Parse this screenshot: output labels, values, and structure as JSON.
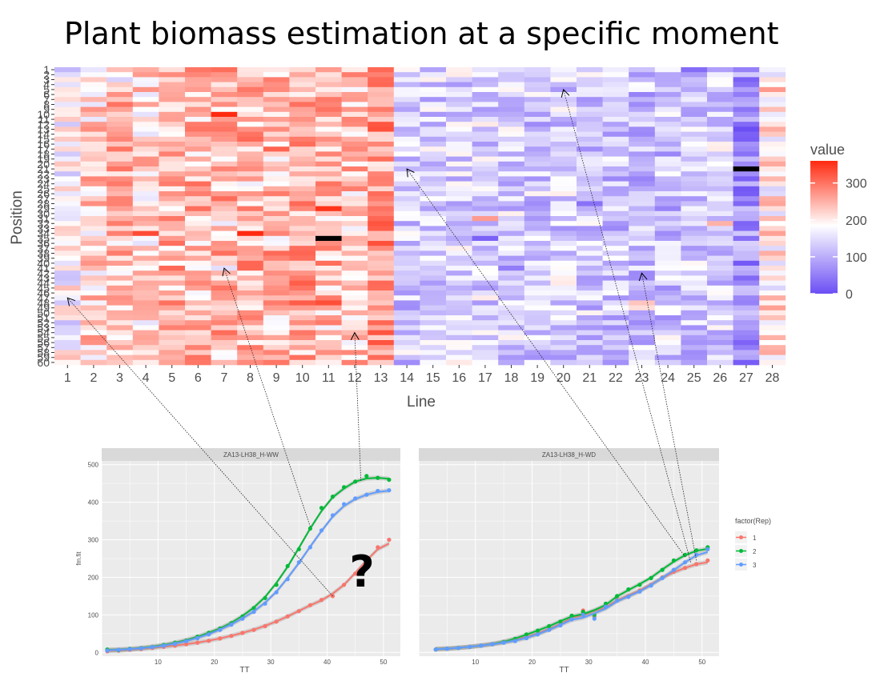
{
  "page": {
    "title": "Plant biomass estimation at a specific moment",
    "question_mark": "?"
  },
  "heatmap": {
    "xlabel": "Line",
    "ylabel": "Position",
    "x_tick_labels": [
      "1",
      "2",
      "3",
      "4",
      "5",
      "6",
      "7",
      "8",
      "9",
      "10",
      "11",
      "12",
      "13",
      "14",
      "15",
      "16",
      "17",
      "18",
      "19",
      "20",
      "21",
      "22",
      "23",
      "24",
      "25",
      "26",
      "27",
      "28"
    ],
    "y_tick_labels": [
      "1",
      "2",
      "3",
      "4",
      "5",
      "6",
      "7",
      "8",
      "9",
      "10",
      "11",
      "12",
      "13",
      "14",
      "15",
      "16",
      "17",
      "18",
      "19",
      "20",
      "21",
      "22",
      "23",
      "24",
      "25",
      "26",
      "27",
      "28",
      "29",
      "30",
      "31",
      "32",
      "33",
      "34",
      "35",
      "36",
      "37",
      "38",
      "39",
      "40",
      "41",
      "42",
      "43",
      "44",
      "45",
      "46",
      "47",
      "48",
      "49",
      "50",
      "51",
      "52",
      "53",
      "54",
      "55",
      "56",
      "57",
      "58",
      "59",
      "60"
    ],
    "legend": {
      "title": "value",
      "ticks": [
        "300",
        "200",
        "100",
        "0"
      ],
      "colors": {
        "low": "#6c4ef5",
        "mid": "#ffffff",
        "high": "#ff2a10"
      },
      "range": [
        0,
        360
      ],
      "midpoint": 185
    },
    "missing_color": "#000000",
    "missing_cells": [
      [
        11,
        35
      ],
      [
        27,
        21
      ]
    ]
  },
  "growth_panels": [
    {
      "strip_title": "ZA13-LH38_H-WW",
      "xlabel": "TT",
      "ylabel": "fm.fit",
      "x_ticks": [
        "10",
        "20",
        "30",
        "40",
        "50"
      ],
      "y_ticks": [
        "0",
        "100",
        "200",
        "300",
        "400",
        "500"
      ]
    },
    {
      "strip_title": "ZA13-LH38_H-WD",
      "xlabel": "TT",
      "x_ticks": [
        "10",
        "20",
        "30",
        "40",
        "50"
      ]
    }
  ],
  "growth_legend": {
    "title": "factor(Rep)",
    "items": [
      {
        "label": "1",
        "color": "#f8766d"
      },
      {
        "label": "2",
        "color": "#00ba38"
      },
      {
        "label": "3",
        "color": "#619cff"
      }
    ]
  },
  "chart_data": [
    {
      "type": "heatmap",
      "title": "",
      "xlabel": "Line",
      "ylabel": "Position",
      "x": [
        1,
        2,
        3,
        4,
        5,
        6,
        7,
        8,
        9,
        10,
        11,
        12,
        13,
        14,
        15,
        16,
        17,
        18,
        19,
        20,
        21,
        22,
        23,
        24,
        25,
        26,
        27,
        28
      ],
      "y_range": [
        1,
        60
      ],
      "column_mean_values": [
        175,
        220,
        240,
        215,
        245,
        240,
        245,
        250,
        235,
        255,
        240,
        230,
        265,
        130,
        135,
        140,
        140,
        135,
        130,
        135,
        130,
        125,
        120,
        125,
        130,
        140,
        75,
        200
      ],
      "value_range": [
        0,
        360
      ],
      "missing": [
        {
          "line": 11,
          "position": 35
        },
        {
          "line": 27,
          "position": 21
        }
      ]
    },
    {
      "type": "scatter",
      "title": "ZA13-LH38_H-WW",
      "xlabel": "TT",
      "ylabel": "fm.fit",
      "xlim": [
        0,
        53
      ],
      "ylim": [
        -10,
        510
      ],
      "series": [
        {
          "name": "1",
          "x": [
            1,
            3,
            5,
            7,
            9,
            11,
            13,
            15,
            17,
            19,
            21,
            23,
            25,
            27,
            29,
            31,
            33,
            35,
            37,
            39,
            41,
            43,
            45,
            47,
            49,
            51
          ],
          "y": [
            3,
            5,
            7,
            9,
            12,
            15,
            18,
            22,
            26,
            31,
            37,
            44,
            52,
            60,
            70,
            82,
            96,
            110,
            126,
            140,
            150,
            180,
            210,
            245,
            280,
            300
          ]
        },
        {
          "name": "2",
          "x": [
            1,
            3,
            5,
            7,
            9,
            11,
            13,
            15,
            17,
            19,
            21,
            23,
            25,
            27,
            29,
            31,
            33,
            35,
            37,
            39,
            41,
            43,
            45,
            47,
            49,
            51
          ],
          "y": [
            8,
            6,
            10,
            12,
            15,
            20,
            26,
            32,
            42,
            52,
            64,
            78,
            96,
            118,
            145,
            180,
            230,
            275,
            330,
            385,
            415,
            440,
            455,
            470,
            465,
            460
          ]
        },
        {
          "name": "3",
          "x": [
            1,
            3,
            5,
            7,
            9,
            11,
            13,
            15,
            17,
            19,
            21,
            23,
            25,
            27,
            29,
            31,
            33,
            35,
            37,
            39,
            41,
            43,
            45,
            47,
            49,
            51
          ],
          "y": [
            5,
            7,
            9,
            11,
            14,
            18,
            23,
            30,
            38,
            48,
            60,
            74,
            90,
            108,
            130,
            160,
            195,
            240,
            280,
            325,
            365,
            395,
            410,
            420,
            430,
            432
          ]
        }
      ]
    },
    {
      "type": "scatter",
      "title": "ZA13-LH38_H-WD",
      "xlabel": "TT",
      "xlim": [
        0,
        53
      ],
      "ylim": [
        -10,
        510
      ],
      "series": [
        {
          "name": "1",
          "x": [
            3,
            5,
            7,
            9,
            11,
            13,
            15,
            17,
            19,
            21,
            23,
            25,
            27,
            29,
            31,
            33,
            35,
            37,
            39,
            41,
            43,
            45,
            47,
            49,
            51
          ],
          "y": [
            8,
            10,
            12,
            15,
            18,
            22,
            28,
            34,
            40,
            50,
            62,
            75,
            90,
            112,
            95,
            125,
            140,
            150,
            165,
            180,
            200,
            215,
            225,
            235,
            245
          ]
        },
        {
          "name": "2",
          "x": [
            3,
            5,
            7,
            9,
            11,
            13,
            15,
            17,
            19,
            21,
            23,
            25,
            27,
            29,
            31,
            33,
            35,
            37,
            39,
            41,
            43,
            45,
            47,
            49,
            51
          ],
          "y": [
            8,
            10,
            12,
            15,
            18,
            22,
            28,
            36,
            48,
            58,
            70,
            82,
            98,
            108,
            100,
            130,
            150,
            168,
            180,
            198,
            220,
            245,
            260,
            272,
            280
          ]
        },
        {
          "name": "3",
          "x": [
            3,
            5,
            7,
            9,
            11,
            13,
            15,
            17,
            19,
            21,
            23,
            25,
            27,
            29,
            31,
            33,
            35,
            37,
            39,
            41,
            43,
            45,
            47,
            49,
            51
          ],
          "y": [
            8,
            10,
            12,
            15,
            18,
            22,
            26,
            30,
            38,
            48,
            60,
            72,
            88,
            100,
            90,
            122,
            138,
            148,
            162,
            178,
            198,
            220,
            240,
            260,
            275
          ]
        }
      ]
    }
  ]
}
